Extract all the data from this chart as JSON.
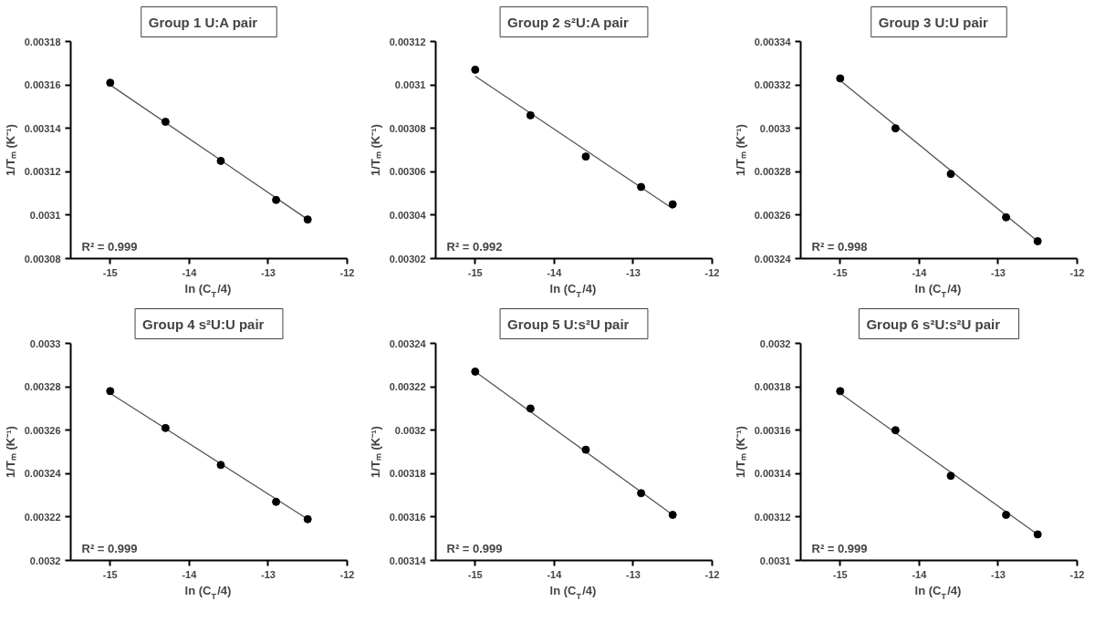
{
  "chart_data": [
    {
      "type": "scatter",
      "title": "Group 1    U:A pair",
      "xlabel": "ln (C$_{T}$/4)",
      "ylabel": "1/Tₘ (K⁻¹)",
      "xlim": [
        -15.5,
        -12
      ],
      "xticks": [
        -15,
        -14,
        -13,
        -12
      ],
      "ylim": [
        0.00308,
        0.00318
      ],
      "yticks": [
        0.00308,
        0.0031,
        0.00312,
        0.00314,
        0.00316,
        0.00318
      ],
      "grid": false,
      "annotations": [
        "R² = 0.999"
      ],
      "series": [
        {
          "type": "scatter",
          "marker": "circle",
          "color": "#000000",
          "x": [
            -15,
            -14.3,
            -13.6,
            -12.9,
            -12.5
          ],
          "values": [
            0.003161,
            0.003143,
            0.003125,
            0.003107,
            0.003098
          ]
        },
        {
          "type": "line",
          "marker": "none",
          "color": "#555555",
          "x": [
            -15,
            -12.5
          ],
          "values": [
            0.00316,
            0.003098
          ]
        }
      ]
    },
    {
      "type": "scatter",
      "title": "Group 2    s²U:A pair",
      "xlabel": "ln (C$_{T}$/4)",
      "ylabel": "1/Tₘ (K⁻¹)",
      "xlim": [
        -15.5,
        -12
      ],
      "xticks": [
        -15,
        -14,
        -13,
        -12
      ],
      "ylim": [
        0.00302,
        0.00312
      ],
      "yticks": [
        0.00302,
        0.00304,
        0.00306,
        0.00308,
        0.0031,
        0.00312
      ],
      "grid": false,
      "annotations": [
        "R² = 0.992"
      ],
      "series": [
        {
          "type": "scatter",
          "marker": "circle",
          "color": "#000000",
          "x": [
            -15,
            -14.3,
            -13.6,
            -12.9,
            -12.5
          ],
          "values": [
            0.003107,
            0.003086,
            0.003067,
            0.003053,
            0.003045
          ]
        },
        {
          "type": "line",
          "marker": "none",
          "color": "#555555",
          "x": [
            -15,
            -12.5
          ],
          "values": [
            0.003104,
            0.003043
          ]
        }
      ]
    },
    {
      "type": "scatter",
      "title": "Group 3    U:U pair",
      "xlabel": "ln (C$_{T}$/4)",
      "ylabel": "1/Tₘ (K⁻¹)",
      "xlim": [
        -15.5,
        -12
      ],
      "xticks": [
        -15,
        -14,
        -13,
        -12
      ],
      "ylim": [
        0.00324,
        0.00334
      ],
      "yticks": [
        0.00324,
        0.00326,
        0.00328,
        0.0033,
        0.00332,
        0.00334
      ],
      "grid": false,
      "annotations": [
        "R² = 0.998"
      ],
      "series": [
        {
          "type": "scatter",
          "marker": "circle",
          "color": "#000000",
          "x": [
            -15,
            -14.3,
            -13.6,
            -12.9,
            -12.5
          ],
          "values": [
            0.003323,
            0.0033,
            0.003279,
            0.003259,
            0.003248
          ]
        },
        {
          "type": "line",
          "marker": "none",
          "color": "#555555",
          "x": [
            -15,
            -12.5
          ],
          "values": [
            0.003322,
            0.003248
          ]
        }
      ]
    },
    {
      "type": "scatter",
      "title": "Group 4    s²U:U pair",
      "xlabel": "ln (C$_{T}$/4)",
      "ylabel": "1/Tₘ (K⁻¹)",
      "xlim": [
        -15.5,
        -12
      ],
      "xticks": [
        -15,
        -14,
        -13,
        -12
      ],
      "ylim": [
        0.0032,
        0.0033
      ],
      "yticks": [
        0.0032,
        0.00322,
        0.00324,
        0.00326,
        0.00328,
        0.0033
      ],
      "grid": false,
      "annotations": [
        "R² = 0.999"
      ],
      "series": [
        {
          "type": "scatter",
          "marker": "circle",
          "color": "#000000",
          "x": [
            -15,
            -14.3,
            -13.6,
            -12.9,
            -12.5
          ],
          "values": [
            0.003278,
            0.003261,
            0.003244,
            0.003227,
            0.003219
          ]
        },
        {
          "type": "line",
          "marker": "none",
          "color": "#555555",
          "x": [
            -15,
            -12.5
          ],
          "values": [
            0.003277,
            0.003219
          ]
        }
      ]
    },
    {
      "type": "scatter",
      "title": "Group 5    U:s²U pair",
      "xlabel": "ln (C$_{T}$/4)",
      "ylabel": "1/Tₘ (K⁻¹)",
      "xlim": [
        -15.5,
        -12
      ],
      "xticks": [
        -15,
        -14,
        -13,
        -12
      ],
      "ylim": [
        0.00314,
        0.00324
      ],
      "yticks": [
        0.00314,
        0.00316,
        0.00318,
        0.0032,
        0.00322,
        0.00324
      ],
      "grid": false,
      "annotations": [
        "R² = 0.999"
      ],
      "series": [
        {
          "type": "scatter",
          "marker": "circle",
          "color": "#000000",
          "x": [
            -15,
            -14.3,
            -13.6,
            -12.9,
            -12.5
          ],
          "values": [
            0.003227,
            0.00321,
            0.003191,
            0.003171,
            0.003161
          ]
        },
        {
          "type": "line",
          "marker": "none",
          "color": "#555555",
          "x": [
            -15,
            -12.5
          ],
          "values": [
            0.003227,
            0.003161
          ]
        }
      ]
    },
    {
      "type": "scatter",
      "title": "Group 6    s²U:s²U pair",
      "xlabel": "ln (C$_{T}$/4)",
      "ylabel": "1/Tₘ (K⁻¹)",
      "xlim": [
        -15.5,
        -12
      ],
      "xticks": [
        -15,
        -14,
        -13,
        -12
      ],
      "ylim": [
        0.0031,
        0.0032
      ],
      "yticks": [
        0.0031,
        0.00312,
        0.00314,
        0.00316,
        0.00318,
        0.0032
      ],
      "grid": false,
      "annotations": [
        "R² = 0.999"
      ],
      "series": [
        {
          "type": "scatter",
          "marker": "circle",
          "color": "#000000",
          "x": [
            -15,
            -14.3,
            -13.6,
            -12.9,
            -12.5
          ],
          "values": [
            0.003178,
            0.00316,
            0.003139,
            0.003121,
            0.003112
          ]
        },
        {
          "type": "line",
          "marker": "none",
          "color": "#555555",
          "x": [
            -15,
            -12.5
          ],
          "values": [
            0.003177,
            0.003112
          ]
        }
      ]
    }
  ]
}
